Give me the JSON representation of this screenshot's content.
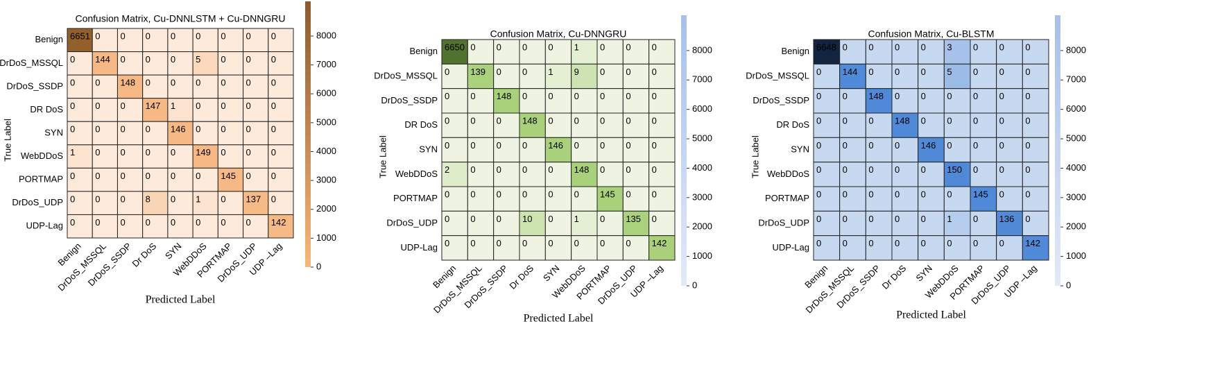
{
  "chart_data": [
    {
      "type": "heatmap",
      "title": "Confusion Matrix, Cu-DNNLSTM + Cu-DNNGRU",
      "x_label": "Predicted Label",
      "y_label": "True Label",
      "rows": [
        "Benign",
        "DrDoS_MSSQL",
        "DrDoS_SSDP",
        "DR DoS",
        "SYN",
        "WebDDoS",
        "PORTMAP",
        "DrDoS_UDP",
        "UDP-Lag"
      ],
      "columns": [
        "Benign",
        "DrDoS_MSSQL",
        "DrDoS_SSDP",
        "Dr DoS",
        "SYN",
        "WebDDoS",
        "PORTMAP",
        "DrDoS_UDP",
        "UDP –Lag"
      ],
      "values": [
        [
          6651,
          0,
          0,
          0,
          0,
          0,
          0,
          0,
          0
        ],
        [
          0,
          144,
          0,
          0,
          0,
          5,
          0,
          0,
          0
        ],
        [
          0,
          0,
          148,
          0,
          0,
          0,
          0,
          0,
          0
        ],
        [
          0,
          0,
          0,
          147,
          1,
          0,
          0,
          0,
          0
        ],
        [
          0,
          0,
          0,
          0,
          146,
          0,
          0,
          0,
          0
        ],
        [
          1,
          0,
          0,
          0,
          0,
          149,
          0,
          0,
          0
        ],
        [
          0,
          0,
          0,
          0,
          0,
          0,
          145,
          0,
          0
        ],
        [
          0,
          0,
          0,
          8,
          0,
          1,
          0,
          137,
          0
        ],
        [
          0,
          0,
          0,
          0,
          0,
          0,
          0,
          0,
          142
        ]
      ],
      "color_scale": "log",
      "cell_colors": [
        "#fdeadb",
        "#f6b985",
        "#8b5722"
      ],
      "colorbar_colors": [
        "#f8b77a",
        "#8c5a2e"
      ],
      "clim": [
        0,
        9200
      ],
      "colorbar_ticks": [
        0,
        1000,
        2000,
        3000,
        4000,
        5000,
        6000,
        7000,
        8000
      ]
    },
    {
      "type": "heatmap",
      "title": "Confusion Matrix, Cu-DNNGRU",
      "x_label": "Predicted Label",
      "y_label": "True Label",
      "rows": [
        "Benign",
        "DrDoS_MSSQL",
        "DrDoS_SSDP",
        "DR DoS",
        "SYN",
        "WebDDoS",
        "PORTMAP",
        "DrDoS_UDP",
        "UDP-Lag"
      ],
      "columns": [
        "Benign",
        "DrDoS_MSSQL",
        "DrDoS_SSDP",
        "Dr DoS",
        "SYN",
        "WebDDoS",
        "PORTMAP",
        "DrDoS_UDP",
        "UDP –Lag"
      ],
      "values": [
        [
          6650,
          0,
          0,
          0,
          0,
          1,
          0,
          0,
          0
        ],
        [
          0,
          139,
          0,
          0,
          1,
          9,
          0,
          0,
          0
        ],
        [
          0,
          0,
          148,
          0,
          0,
          0,
          0,
          0,
          0
        ],
        [
          0,
          0,
          0,
          148,
          0,
          0,
          0,
          0,
          0
        ],
        [
          0,
          0,
          0,
          0,
          146,
          0,
          0,
          0,
          0
        ],
        [
          2,
          0,
          0,
          0,
          0,
          148,
          0,
          0,
          0
        ],
        [
          0,
          0,
          0,
          0,
          0,
          0,
          145,
          0,
          0
        ],
        [
          0,
          0,
          0,
          10,
          0,
          1,
          0,
          135,
          0
        ],
        [
          0,
          0,
          0,
          0,
          0,
          0,
          0,
          0,
          142
        ]
      ],
      "color_scale": "log",
      "cell_colors": [
        "#eef4e1",
        "#a9d07a",
        "#4b6a2a"
      ],
      "colorbar_colors": [
        "#e3eaf8",
        "#a7bfea"
      ],
      "clim": [
        0,
        9200
      ],
      "colorbar_ticks": [
        0,
        1000,
        2000,
        3000,
        4000,
        5000,
        6000,
        7000,
        8000
      ]
    },
    {
      "type": "heatmap",
      "title": "Confusion Matrix, Cu-BLSTM",
      "x_label": "Predicted Label",
      "y_label": "True Label",
      "rows": [
        "Benign",
        "DrDoS_MSSQL",
        "DrDoS_SSDP",
        "DR DoS",
        "SYN",
        "WebDDoS",
        "PORTMAP",
        "DrDoS_UDP",
        "UDP-Lag"
      ],
      "columns": [
        "Benign",
        "DrDoS_MSSQL",
        "DrDoS_SSDP",
        "Dr DoS",
        "SYN",
        "WebDDoS",
        "PORTMAP",
        "DrDoS_UDP",
        "UDP –Lag"
      ],
      "values": [
        [
          6648,
          0,
          0,
          0,
          0,
          3,
          0,
          0,
          0
        ],
        [
          0,
          144,
          0,
          0,
          0,
          5,
          0,
          0,
          0
        ],
        [
          0,
          0,
          148,
          0,
          0,
          0,
          0,
          0,
          0
        ],
        [
          0,
          0,
          0,
          148,
          0,
          0,
          0,
          0,
          0
        ],
        [
          0,
          0,
          0,
          0,
          146,
          0,
          0,
          0,
          0
        ],
        [
          0,
          0,
          0,
          0,
          0,
          150,
          0,
          0,
          0
        ],
        [
          0,
          0,
          0,
          0,
          0,
          0,
          145,
          0,
          0
        ],
        [
          0,
          0,
          0,
          0,
          0,
          1,
          0,
          136,
          0
        ],
        [
          0,
          0,
          0,
          0,
          0,
          0,
          0,
          0,
          142
        ]
      ],
      "color_scale": "log",
      "cell_colors": [
        "#c7d8f1",
        "#4f89d8",
        "#0d1b33"
      ],
      "colorbar_colors": [
        "#e3eaf8",
        "#a7bfea"
      ],
      "clim": [
        0,
        9200
      ],
      "colorbar_ticks": [
        0,
        1000,
        2000,
        3000,
        4000,
        5000,
        6000,
        7000,
        8000
      ]
    }
  ]
}
